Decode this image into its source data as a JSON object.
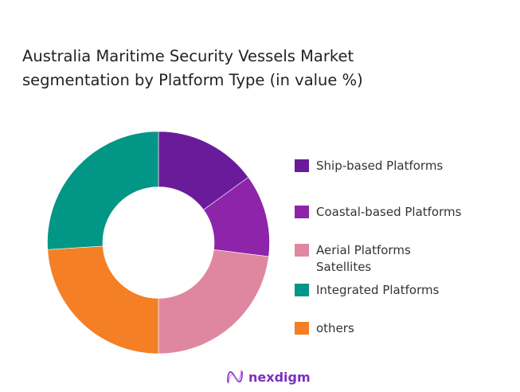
{
  "chart_data": {
    "type": "pie",
    "donut": true,
    "title": "Australia Maritime Security Vessels Market segmentation by Platform Type (in value %)",
    "categories": [
      "Ship-based Platforms",
      "Coastal-based Platforms",
      "Aerial Platforms Satellites",
      "Integrated Platforms",
      "others"
    ],
    "slices": [
      {
        "label": "Ship-based Platforms",
        "value": 15,
        "color": "#6a1b9a"
      },
      {
        "label": "Coastal-based Platforms",
        "value": 12,
        "color": "#8e24aa"
      },
      {
        "label": "Aerial Platforms Satellites",
        "value": 23,
        "color": "#df87a0"
      },
      {
        "label": "others",
        "value": 24,
        "color": "#f47f24"
      },
      {
        "label": "Integrated Platforms",
        "value": 26,
        "color": "#029686"
      }
    ],
    "legend": {
      "placement": "right",
      "items": [
        {
          "lines": [
            "Ship-based Platforms"
          ],
          "color": "#6a1b9a"
        },
        {
          "lines": [
            "Coastal-based Platforms"
          ],
          "color": "#8e24aa"
        },
        {
          "lines": [
            "Aerial Platforms",
            "Satellites"
          ],
          "color": "#df87a0"
        },
        {
          "lines": [
            "Integrated Platforms"
          ],
          "color": "#029686"
        },
        {
          "lines": [
            "others"
          ],
          "color": "#f47f24"
        }
      ]
    }
  },
  "title_lines": [
    "Australia Maritime Security Vessels Market",
    "segmentation by Platform Type (in value %)"
  ],
  "logo": {
    "text": "nexdigm",
    "color": "#7b2fbe"
  }
}
